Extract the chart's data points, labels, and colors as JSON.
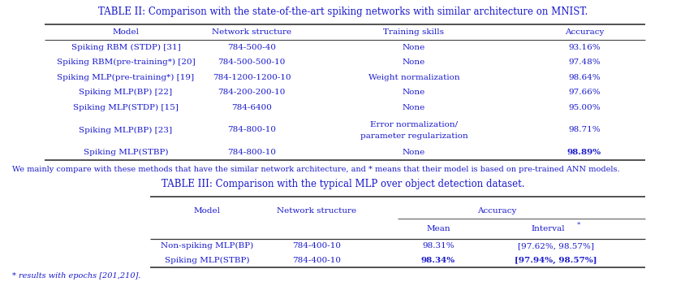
{
  "title2": "TABLE II: Comparison with the state-of-the-art spiking networks with similar architecture on MNIST.",
  "title3": "TABLE III: Comparison with the typical MLP over object detection dataset.",
  "table2_headers": [
    "Model",
    "Network structure",
    "Training skills",
    "Accuracy"
  ],
  "table2_rows": [
    [
      "Spiking RBM (STDP) [31]",
      "784-500-40",
      "None",
      "93.16%"
    ],
    [
      "Spiking RBM(pre-training*) [20]",
      "784-500-500-10",
      "None",
      "97.48%"
    ],
    [
      "Spiking MLP(pre-training*) [19]",
      "784-1200-1200-10",
      "Weight normalization",
      "98.64%"
    ],
    [
      "Spiking MLP(BP) [22]",
      "784-200-200-10",
      "None",
      "97.66%"
    ],
    [
      "Spiking MLP(STDP) [15]",
      "784-6400",
      "None",
      "95.00%"
    ],
    [
      "Spiking MLP(BP) [23]",
      "784-800-10",
      "Error normalization/\nparameter regularization",
      "98.71%"
    ],
    [
      "Spiking MLP(STBP)",
      "784-800-10",
      "None",
      "98.89%"
    ]
  ],
  "footnote2": "We mainly compare with these methods that have the similar network architecture, and * means that their model is based on pre-trained ANN models.",
  "table3_rows": [
    [
      "Non-spiking MLP(BP)",
      "784-400-10",
      "98.31%",
      "[97.62%, 98.57%]"
    ],
    [
      "Spiking MLP(STBP)",
      "784-400-10",
      "98.34%",
      "[97.94%, 98.57%]"
    ]
  ],
  "footnote3": "* results with epochs [201,210].",
  "text_color": "#1a1acc",
  "bg_color": "#ffffff",
  "line_color": "#333333",
  "fs_title": 8.5,
  "fs_body": 7.5,
  "fs_foot": 7.0
}
